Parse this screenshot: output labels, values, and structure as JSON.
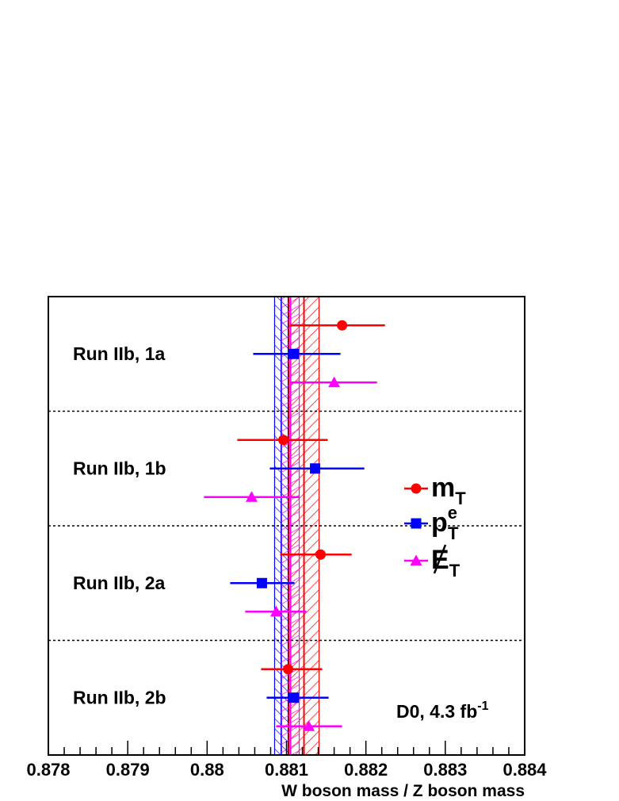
{
  "chart_data": {
    "type": "scatter",
    "xlabel": "W boson mass / Z boson mass",
    "xlim": [
      0.878,
      0.884
    ],
    "x_ticks": [
      "0.878",
      "0.879",
      "0.88",
      "0.881",
      "0.882",
      "0.883",
      "0.884"
    ],
    "grid": false,
    "annotation": {
      "main": "D0, 4.3 fb",
      "sup": "-1"
    },
    "categories": [
      "Run IIb, 1a",
      "Run IIb, 1b",
      "Run IIb, 2a",
      "Run IIb, 2b"
    ],
    "legend_position": "right",
    "series": [
      {
        "name": "mT",
        "symbol": "m",
        "sub": "T",
        "marker": "circle",
        "color": "#ff0000",
        "band": [
          0.88103,
          0.88141
        ],
        "points": [
          {
            "category": "Run IIb, 1a",
            "value": 0.8817,
            "err_low": 0.88104,
            "err_high": 0.88224
          },
          {
            "category": "Run IIb, 1b",
            "value": 0.88096,
            "err_low": 0.88038,
            "err_high": 0.88152
          },
          {
            "category": "Run IIb, 2a",
            "value": 0.88143,
            "err_low": 0.88092,
            "err_high": 0.88182
          },
          {
            "category": "Run IIb, 2b",
            "value": 0.88102,
            "err_low": 0.88068,
            "err_high": 0.88145
          }
        ]
      },
      {
        "name": "pT e",
        "symbol": "p",
        "sub": "T",
        "sup": "e",
        "marker": "square",
        "color": "#0000ff",
        "band": [
          0.88085,
          0.88102
        ],
        "points": [
          {
            "category": "Run IIb, 1a",
            "value": 0.88109,
            "err_low": 0.88058,
            "err_high": 0.88168
          },
          {
            "category": "Run IIb, 1b",
            "value": 0.88136,
            "err_low": 0.88079,
            "err_high": 0.88198
          },
          {
            "category": "Run IIb, 2a",
            "value": 0.88069,
            "err_low": 0.88029,
            "err_high": 0.8811
          },
          {
            "category": "Run IIb, 2b",
            "value": 0.88109,
            "err_low": 0.88075,
            "err_high": 0.88153
          }
        ]
      },
      {
        "name": "missing ET",
        "symbol": "E",
        "sub": "T",
        "marker": "triangle",
        "color": "#ff00ff",
        "band": [
          0.88094,
          0.88116
        ],
        "points": [
          {
            "category": "Run IIb, 1a",
            "value": 0.8816,
            "err_low": 0.88105,
            "err_high": 0.88214
          },
          {
            "category": "Run IIb, 1b",
            "value": 0.88056,
            "err_low": 0.87996,
            "err_high": 0.88116
          },
          {
            "category": "Run IIb, 2a",
            "value": 0.88087,
            "err_low": 0.88048,
            "err_high": 0.88125
          },
          {
            "category": "Run IIb, 2b",
            "value": 0.88128,
            "err_low": 0.88087,
            "err_high": 0.8817
          }
        ]
      }
    ]
  }
}
